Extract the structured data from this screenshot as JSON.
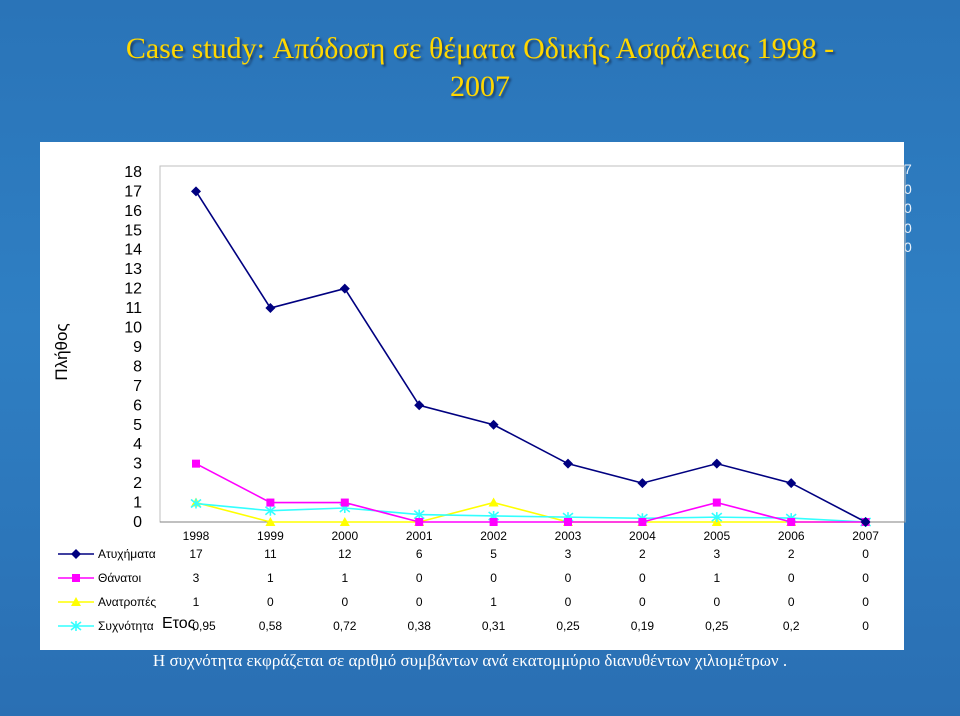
{
  "slide": {
    "title_line1": "Case study: Απόδοση σε θέματα Οδικής Ασφάλειας 1998 -",
    "title_line2": "2007",
    "footnote": "Η συχνότητα εκφράζεται σε αριθμό συμβάντων ανά εκατομμύριο διανυθέντων χιλιομέτρων ."
  },
  "chart_data": {
    "type": "line",
    "title": "",
    "ylabel": "Πλήθος",
    "xlabel": "Ετος",
    "categories": [
      "1998",
      "1999",
      "2000",
      "2001",
      "2002",
      "2003",
      "2004",
      "2005",
      "2006",
      "2007"
    ],
    "ylim": [
      0,
      18
    ],
    "yticks": [
      "0",
      "1",
      "2",
      "3",
      "4",
      "5",
      "6",
      "7",
      "8",
      "9",
      "10",
      "11",
      "12",
      "13",
      "14",
      "15",
      "16",
      "17",
      "18"
    ],
    "legend": "table-below",
    "series": [
      {
        "name": "Ατυχήματα",
        "color": "#000080",
        "marker": "diamond",
        "values": [
          17,
          11,
          12,
          6,
          5,
          3,
          2,
          3,
          2,
          0
        ],
        "labels": [
          "17",
          "11",
          "12",
          "6",
          "5",
          "3",
          "2",
          "3",
          "2",
          "0"
        ]
      },
      {
        "name": "Θάνατοι",
        "color": "#ff00ff",
        "marker": "square",
        "values": [
          3,
          1,
          1,
          0,
          0,
          0,
          0,
          1,
          0,
          0
        ],
        "labels": [
          "3",
          "1",
          "1",
          "0",
          "0",
          "0",
          "0",
          "1",
          "0",
          "0"
        ]
      },
      {
        "name": "Ανατροπές",
        "color": "#ffff00",
        "marker": "triangle",
        "values": [
          1,
          0,
          0,
          0,
          1,
          0,
          0,
          0,
          0,
          0
        ],
        "labels": [
          "1",
          "0",
          "0",
          "0",
          "1",
          "0",
          "0",
          "0",
          "0",
          "0"
        ]
      },
      {
        "name": "Συχνότητα",
        "color": "#33ffff",
        "marker": "x",
        "values": [
          0.95,
          0.58,
          0.72,
          0.38,
          0.31,
          0.25,
          0.19,
          0.25,
          0.2,
          0
        ],
        "labels": [
          "0,95",
          "0,58",
          "0,72",
          "0,38",
          "0,31",
          "0,25",
          "0,19",
          "0,25",
          "0,2",
          "0"
        ]
      }
    ],
    "secondary_axis_partial": [
      "7",
      "0",
      "0",
      "0",
      "0"
    ]
  }
}
